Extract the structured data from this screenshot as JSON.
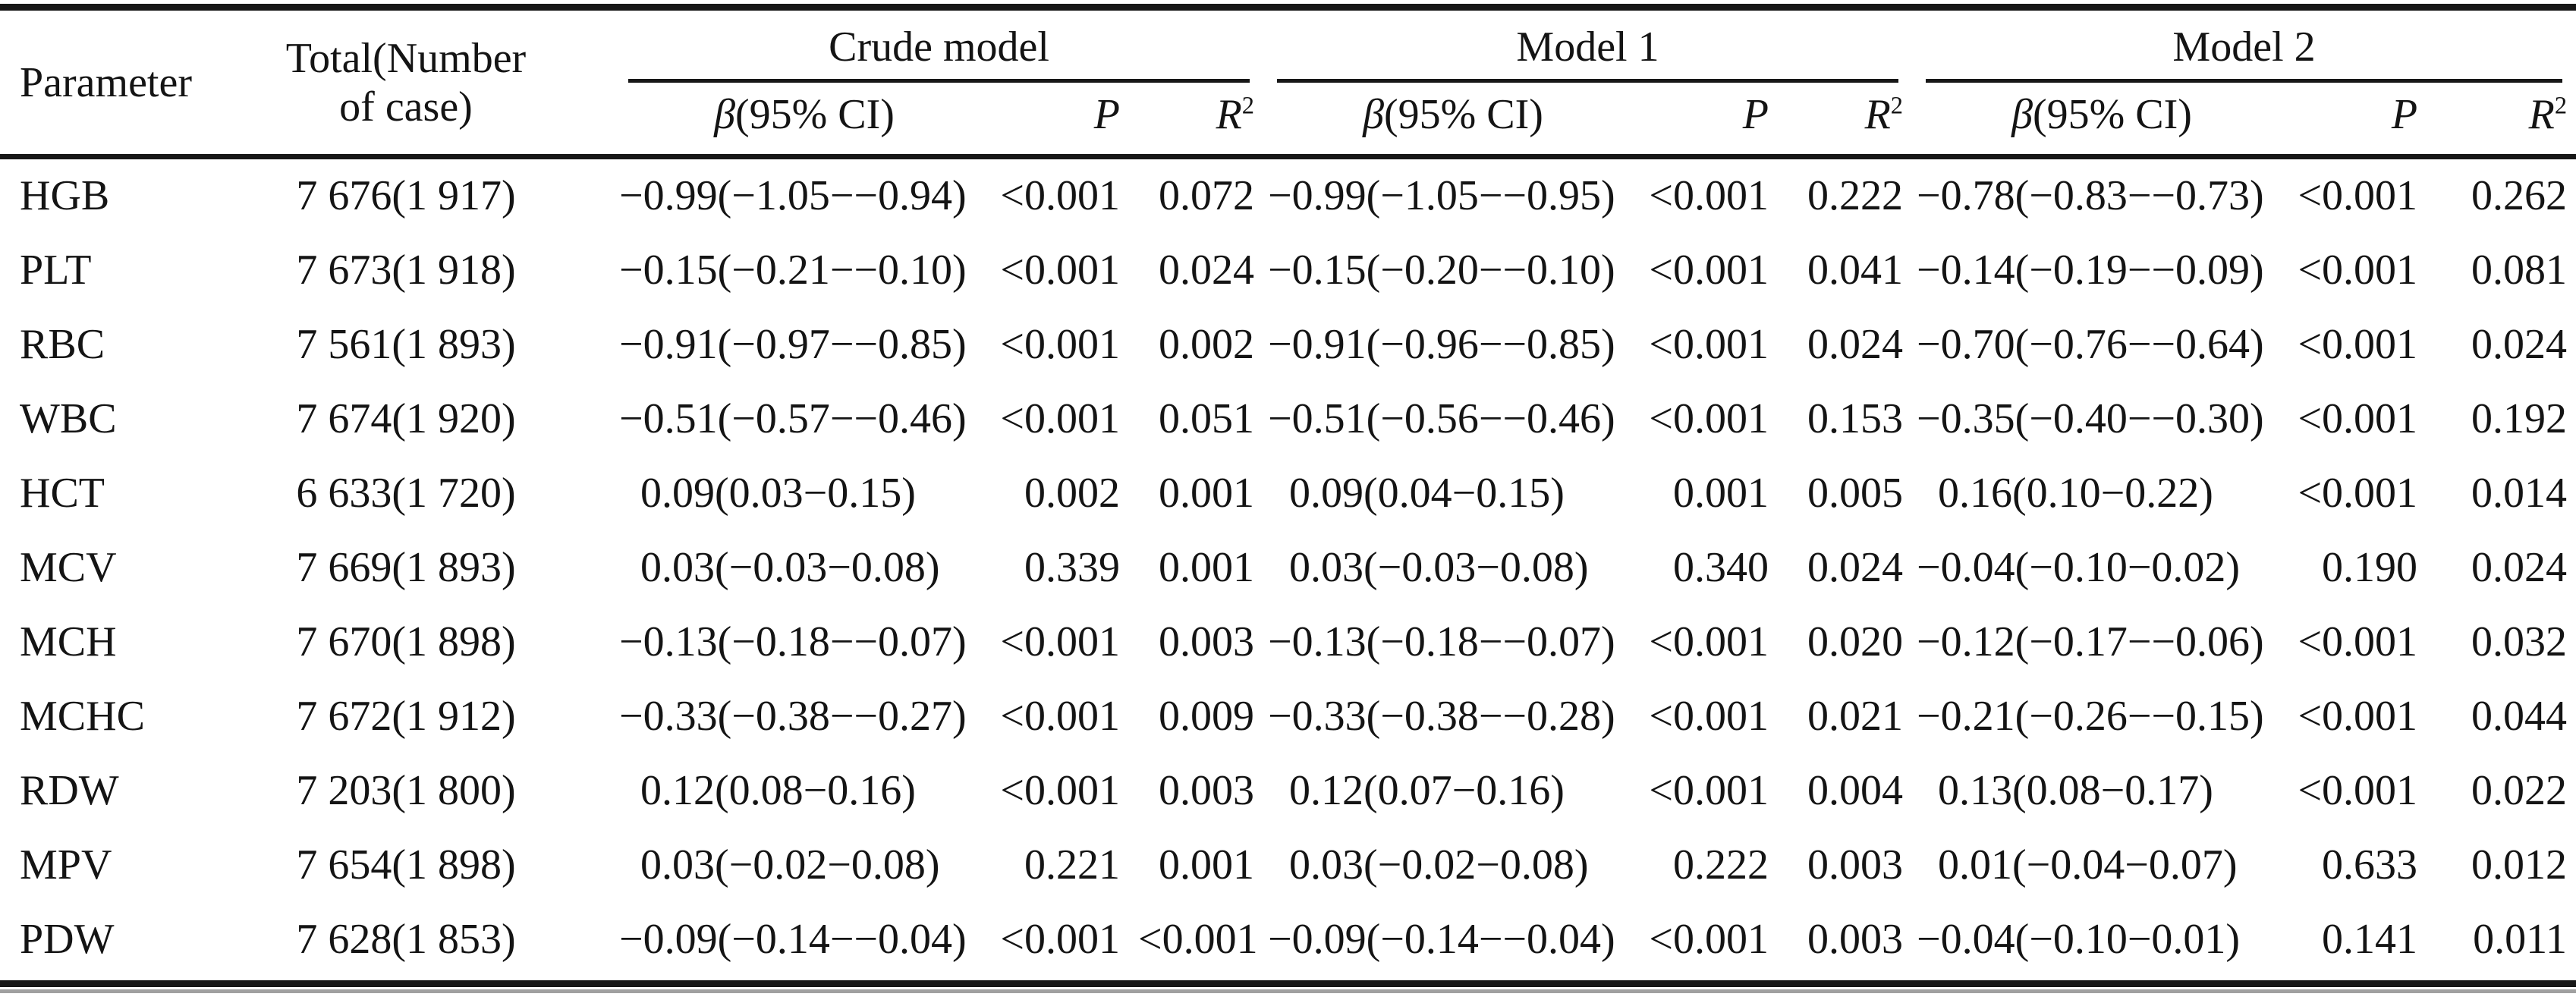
{
  "table": {
    "header": {
      "parameter": "Parameter",
      "total_line1": "Total(Number",
      "total_line2": "of case)",
      "groups": [
        "Crude model",
        "Model 1",
        "Model 2"
      ],
      "beta_symbol": "β",
      "beta_rest": "(95% CI)",
      "p_label": "P",
      "r2_base": "R",
      "r2_sup": "2"
    },
    "rows": [
      {
        "parameter": "HGB",
        "total": "7 676(1 917)",
        "crude": {
          "beta": "−0.99(−1.05−−0.94)",
          "p": "<0.001",
          "r2": "0.072"
        },
        "model1": {
          "beta": "−0.99(−1.05−−0.95)",
          "p": "<0.001",
          "r2": "0.222"
        },
        "model2": {
          "beta": "−0.78(−0.83−−0.73)",
          "p": "<0.001",
          "r2": "0.262"
        }
      },
      {
        "parameter": "PLT",
        "total": "7 673(1 918)",
        "crude": {
          "beta": "−0.15(−0.21−−0.10)",
          "p": "<0.001",
          "r2": "0.024"
        },
        "model1": {
          "beta": "−0.15(−0.20−−0.10)",
          "p": "<0.001",
          "r2": "0.041"
        },
        "model2": {
          "beta": "−0.14(−0.19−−0.09)",
          "p": "<0.001",
          "r2": "0.081"
        }
      },
      {
        "parameter": "RBC",
        "total": "7 561(1 893)",
        "crude": {
          "beta": "−0.91(−0.97−−0.85)",
          "p": "<0.001",
          "r2": "0.002"
        },
        "model1": {
          "beta": "−0.91(−0.96−−0.85)",
          "p": "<0.001",
          "r2": "0.024"
        },
        "model2": {
          "beta": "−0.70(−0.76−−0.64)",
          "p": "<0.001",
          "r2": "0.024"
        }
      },
      {
        "parameter": "WBC",
        "total": "7 674(1 920)",
        "crude": {
          "beta": "−0.51(−0.57−−0.46)",
          "p": "<0.001",
          "r2": "0.051"
        },
        "model1": {
          "beta": "−0.51(−0.56−−0.46)",
          "p": "<0.001",
          "r2": "0.153"
        },
        "model2": {
          "beta": "−0.35(−0.40−−0.30)",
          "p": "<0.001",
          "r2": "0.192"
        }
      },
      {
        "parameter": "HCT",
        "total": "6 633(1 720)",
        "crude": {
          "beta": " 0.09(0.03−0.15)",
          "p": "0.002",
          "r2": "0.001"
        },
        "model1": {
          "beta": " 0.09(0.04−0.15)",
          "p": "0.001",
          "r2": "0.005"
        },
        "model2": {
          "beta": " 0.16(0.10−0.22)",
          "p": "<0.001",
          "r2": "0.014"
        }
      },
      {
        "parameter": "MCV",
        "total": "7 669(1 893)",
        "crude": {
          "beta": " 0.03(−0.03−0.08)",
          "p": "0.339",
          "r2": "0.001"
        },
        "model1": {
          "beta": " 0.03(−0.03−0.08)",
          "p": "0.340",
          "r2": "0.024"
        },
        "model2": {
          "beta": "−0.04(−0.10−0.02)",
          "p": "0.190",
          "r2": "0.024"
        }
      },
      {
        "parameter": "MCH",
        "total": "7 670(1 898)",
        "crude": {
          "beta": "−0.13(−0.18−−0.07)",
          "p": "<0.001",
          "r2": "0.003"
        },
        "model1": {
          "beta": "−0.13(−0.18−−0.07)",
          "p": "<0.001",
          "r2": "0.020"
        },
        "model2": {
          "beta": "−0.12(−0.17−−0.06)",
          "p": "<0.001",
          "r2": "0.032"
        }
      },
      {
        "parameter": "MCHC",
        "total": "7 672(1 912)",
        "crude": {
          "beta": "−0.33(−0.38−−0.27)",
          "p": "<0.001",
          "r2": "0.009"
        },
        "model1": {
          "beta": "−0.33(−0.38−−0.28)",
          "p": "<0.001",
          "r2": "0.021"
        },
        "model2": {
          "beta": "−0.21(−0.26−−0.15)",
          "p": "<0.001",
          "r2": "0.044"
        }
      },
      {
        "parameter": "RDW",
        "total": "7 203(1 800)",
        "crude": {
          "beta": " 0.12(0.08−0.16)",
          "p": "<0.001",
          "r2": "0.003"
        },
        "model1": {
          "beta": " 0.12(0.07−0.16)",
          "p": "<0.001",
          "r2": "0.004"
        },
        "model2": {
          "beta": " 0.13(0.08−0.17)",
          "p": "<0.001",
          "r2": "0.022"
        }
      },
      {
        "parameter": "MPV",
        "total": "7 654(1 898)",
        "crude": {
          "beta": " 0.03(−0.02−0.08)",
          "p": "0.221",
          "r2": "0.001"
        },
        "model1": {
          "beta": " 0.03(−0.02−0.08)",
          "p": "0.222",
          "r2": "0.003"
        },
        "model2": {
          "beta": " 0.01(−0.04−0.07)",
          "p": "0.633",
          "r2": "0.012"
        }
      },
      {
        "parameter": "PDW",
        "total": "7 628(1 853)",
        "crude": {
          "beta": "−0.09(−0.14−−0.04)",
          "p": "<0.001",
          "r2": "<0.001"
        },
        "model1": {
          "beta": "−0.09(−0.14−−0.04)",
          "p": "<0.001",
          "r2": "0.003"
        },
        "model2": {
          "beta": "−0.04(−0.10−0.01)",
          "p": "0.141",
          "r2": "0.011"
        }
      }
    ]
  }
}
